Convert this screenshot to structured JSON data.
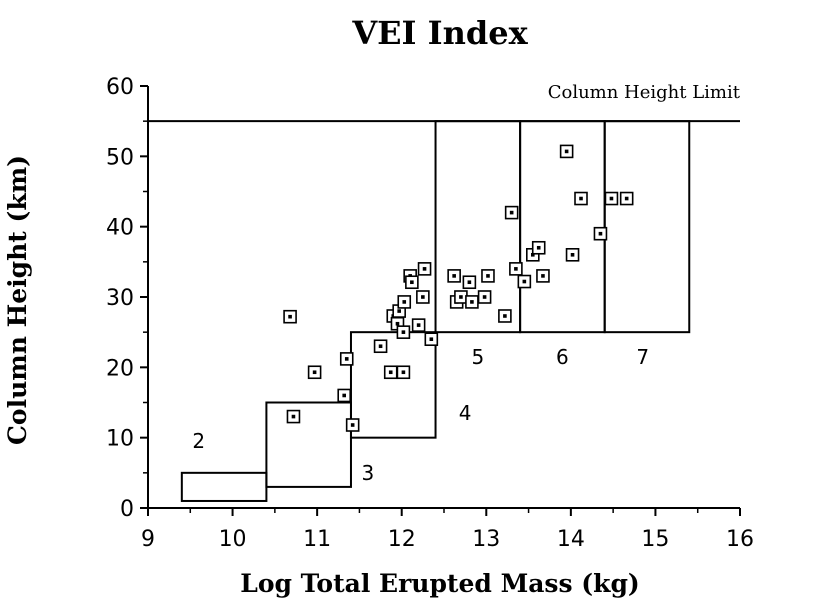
{
  "chart_data": {
    "type": "scatter",
    "title": "VEI Index",
    "xlabel": "Log Total Erupted Mass (kg)",
    "ylabel": "Column Height (km)",
    "xlim": [
      9,
      16
    ],
    "ylim": [
      0,
      60
    ],
    "x_ticks": [
      9,
      10,
      11,
      12,
      13,
      14,
      15,
      16
    ],
    "y_ticks": [
      0,
      10,
      20,
      30,
      40,
      50,
      60
    ],
    "column_height_limit": {
      "value": 55,
      "label": "Column Height Limit"
    },
    "vei_zones": [
      {
        "label": "2",
        "x": [
          9.4,
          10.4
        ],
        "y": [
          1,
          5
        ]
      },
      {
        "label": "3",
        "x": [
          10.4,
          11.4
        ],
        "y": [
          3,
          15
        ]
      },
      {
        "label": "4",
        "x": [
          11.4,
          12.4
        ],
        "y": [
          10,
          25
        ]
      },
      {
        "label": "5",
        "x": [
          12.4,
          13.4
        ],
        "y": [
          25,
          55
        ]
      },
      {
        "label": "6",
        "x": [
          13.4,
          14.4
        ],
        "y": [
          25,
          55
        ]
      },
      {
        "label": "7",
        "x": [
          14.4,
          15.4
        ],
        "y": [
          25,
          55
        ]
      }
    ],
    "points": [
      {
        "x": 10.68,
        "y": 27.2
      },
      {
        "x": 10.72,
        "y": 13.0
      },
      {
        "x": 10.97,
        "y": 19.3
      },
      {
        "x": 11.32,
        "y": 16.0
      },
      {
        "x": 11.35,
        "y": 21.2
      },
      {
        "x": 11.42,
        "y": 11.8
      },
      {
        "x": 11.75,
        "y": 23.0
      },
      {
        "x": 11.87,
        "y": 19.3
      },
      {
        "x": 11.9,
        "y": 27.3
      },
      {
        "x": 11.95,
        "y": 26.2
      },
      {
        "x": 11.97,
        "y": 28.0
      },
      {
        "x": 12.02,
        "y": 19.3
      },
      {
        "x": 12.02,
        "y": 25.0
      },
      {
        "x": 12.03,
        "y": 29.3
      },
      {
        "x": 12.1,
        "y": 33.0
      },
      {
        "x": 12.12,
        "y": 32.1
      },
      {
        "x": 12.2,
        "y": 26.0
      },
      {
        "x": 12.25,
        "y": 30.0
      },
      {
        "x": 12.27,
        "y": 34.0
      },
      {
        "x": 12.35,
        "y": 24.0
      },
      {
        "x": 12.62,
        "y": 33.0
      },
      {
        "x": 12.65,
        "y": 29.3
      },
      {
        "x": 12.7,
        "y": 30.0
      },
      {
        "x": 12.8,
        "y": 32.1
      },
      {
        "x": 12.83,
        "y": 29.3
      },
      {
        "x": 12.98,
        "y": 30.0
      },
      {
        "x": 13.02,
        "y": 33.0
      },
      {
        "x": 13.22,
        "y": 27.3
      },
      {
        "x": 13.3,
        "y": 42.0
      },
      {
        "x": 13.35,
        "y": 34.0
      },
      {
        "x": 13.45,
        "y": 32.2
      },
      {
        "x": 13.55,
        "y": 36.0
      },
      {
        "x": 13.62,
        "y": 37.0
      },
      {
        "x": 13.67,
        "y": 33.0
      },
      {
        "x": 13.95,
        "y": 50.7
      },
      {
        "x": 14.02,
        "y": 36.0
      },
      {
        "x": 14.12,
        "y": 44.0
      },
      {
        "x": 14.35,
        "y": 39.0
      },
      {
        "x": 14.48,
        "y": 44.0
      },
      {
        "x": 14.66,
        "y": 44.0
      }
    ]
  }
}
